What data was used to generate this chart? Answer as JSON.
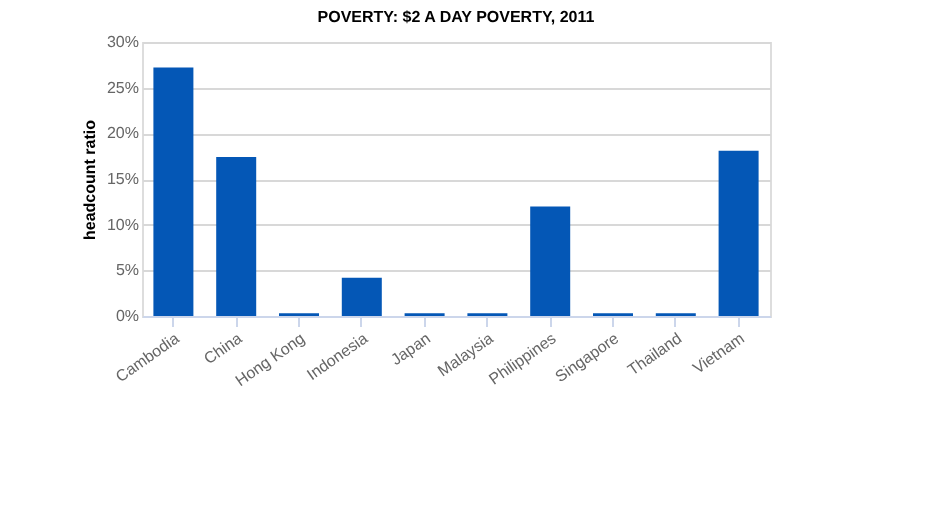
{
  "chart_data": {
    "type": "bar",
    "title": "POVERTY: $2 A DAY POVERTY, 2011",
    "ylabel": "headcount ratio",
    "categories": [
      "Cambodia",
      "China",
      "Hong Kong",
      "Indonesia",
      "Japan",
      "Malaysia",
      "Philippines",
      "Singapore",
      "Thailand",
      "Vietnam"
    ],
    "values": [
      27.2,
      17.4,
      0.3,
      4.2,
      0.3,
      0.3,
      12.0,
      0.3,
      0.3,
      18.1
    ],
    "color": "#0457b6",
    "ylim": [
      0,
      30
    ],
    "yticks": [
      {
        "value": 0,
        "label": "0%"
      },
      {
        "value": 5,
        "label": "5%"
      },
      {
        "value": 10,
        "label": "10%"
      },
      {
        "value": 15,
        "label": "15%"
      },
      {
        "value": 20,
        "label": "20%"
      },
      {
        "value": 25,
        "label": "25%"
      },
      {
        "value": 30,
        "label": "30%"
      }
    ],
    "grid": "y"
  }
}
